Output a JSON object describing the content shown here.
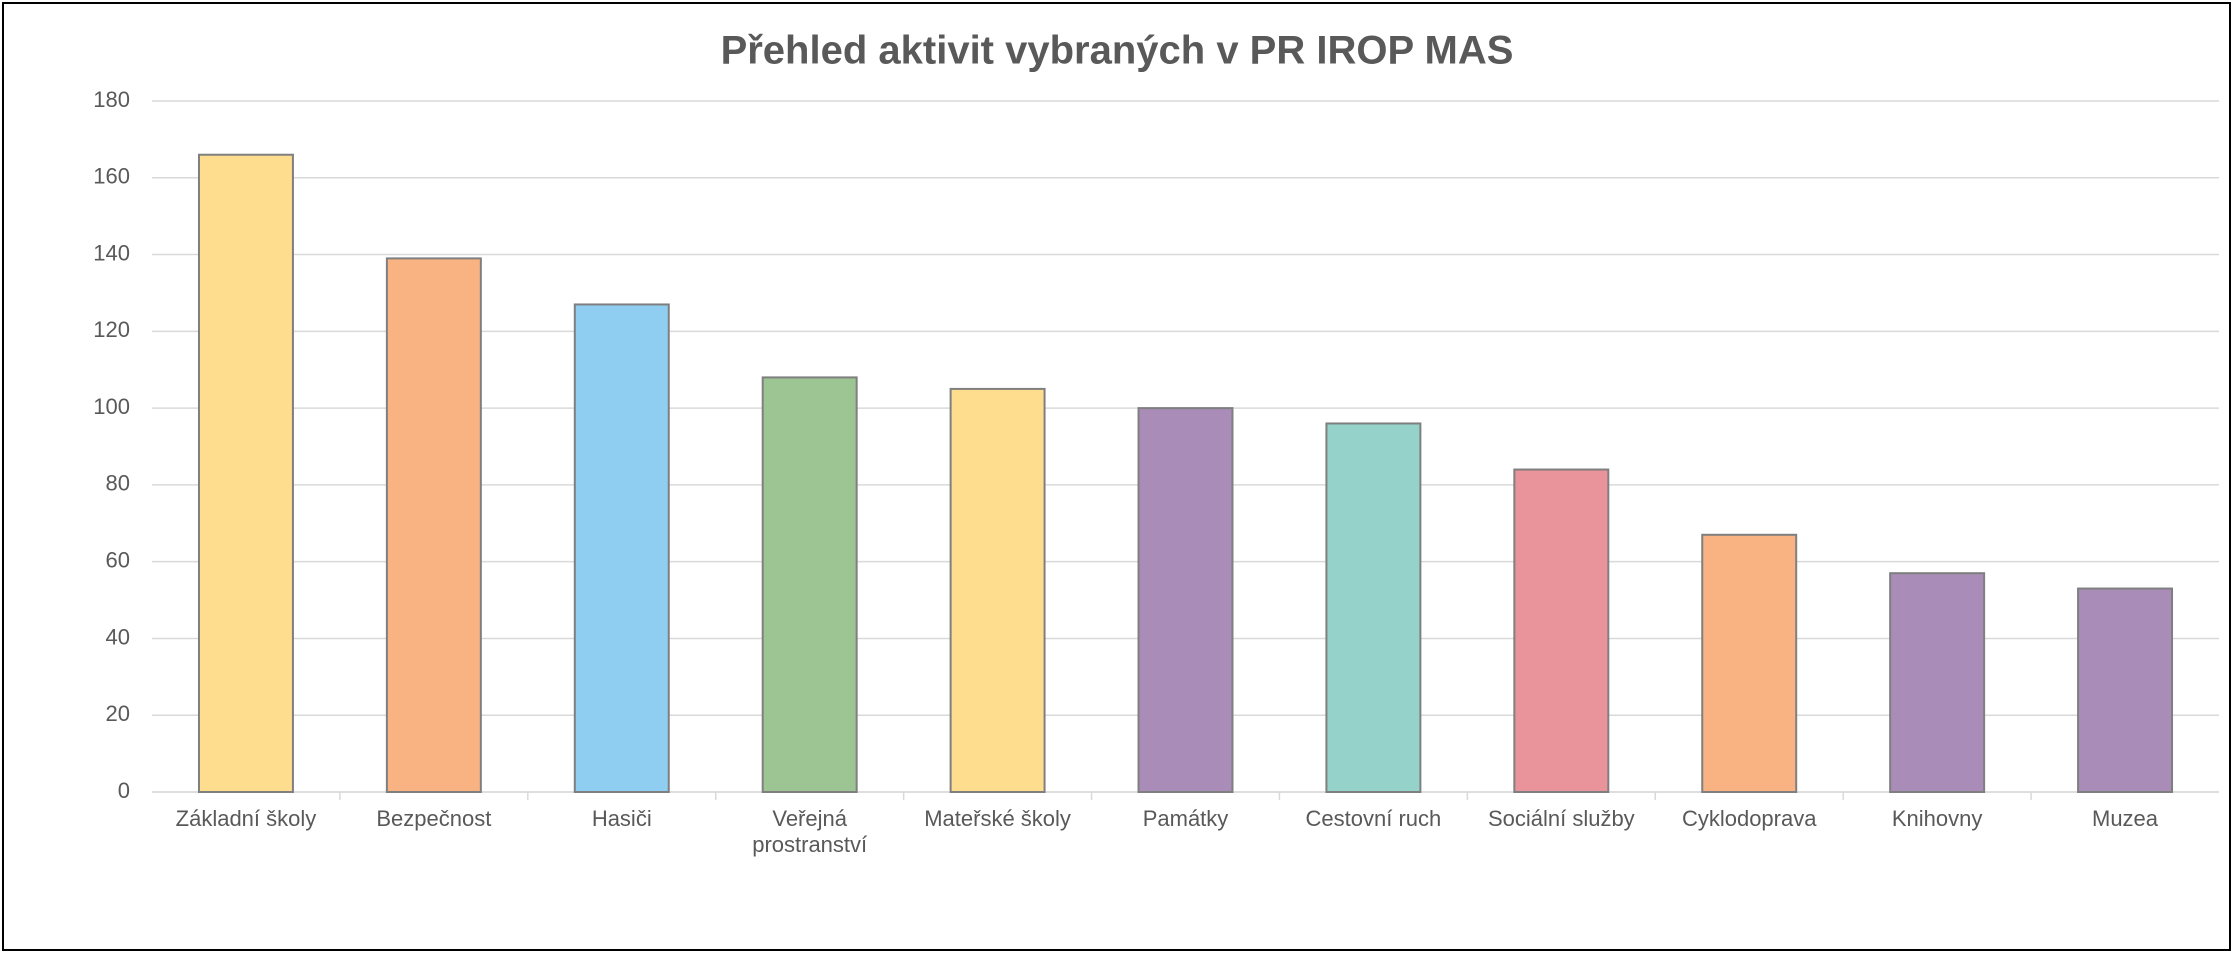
{
  "chart_data": {
    "type": "bar",
    "title": "Přehled aktivit vybraných v PR IROP MAS",
    "categories": [
      "Základní školy",
      "Bezpečnost",
      "Hasiči",
      "Veřejná prostranství",
      "Mateřské školy",
      "Památky",
      "Cestovní ruch",
      "Sociální služby",
      "Cyklodoprava",
      "Knihovny",
      "Muzea"
    ],
    "values": [
      166,
      139,
      127,
      108,
      105,
      100,
      96,
      84,
      67,
      57,
      53
    ],
    "colors": [
      "#ffdd8f",
      "#f9b282",
      "#8fcdf1",
      "#9dc493",
      "#ffdd8f",
      "#a98cb7",
      "#95d2c9",
      "#e8949a",
      "#f9b282",
      "#a98cb7",
      "#a98cb7"
    ],
    "ylim": [
      0,
      180
    ],
    "yticks": [
      0,
      20,
      40,
      60,
      80,
      100,
      120,
      140,
      160,
      180
    ],
    "grid": true
  }
}
